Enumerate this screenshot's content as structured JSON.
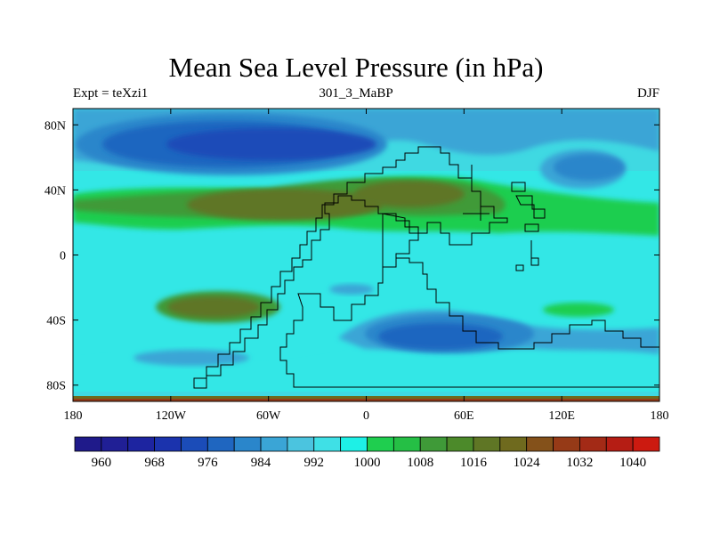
{
  "title": "Mean Sea Level Pressure (in hPa)",
  "subtitle_left": "Expt = teXzi1",
  "subtitle_center": "301_3_MaBP",
  "subtitle_right": "DJF",
  "map": {
    "projection": "cylindrical equidistant",
    "lon_range": [
      -180,
      180
    ],
    "lat_range": [
      -90,
      90
    ],
    "x_ticks": [
      {
        "value": -180,
        "label": "180"
      },
      {
        "value": -120,
        "label": "120W"
      },
      {
        "value": -60,
        "label": "60W"
      },
      {
        "value": 0,
        "label": "0"
      },
      {
        "value": 60,
        "label": "60E"
      },
      {
        "value": 120,
        "label": "120E"
      },
      {
        "value": 180,
        "label": "180"
      }
    ],
    "y_ticks": [
      {
        "value": 80,
        "label": "80N"
      },
      {
        "value": 40,
        "label": "40N"
      },
      {
        "value": 0,
        "label": "0"
      },
      {
        "value": -40,
        "label": "40S"
      },
      {
        "value": -80,
        "label": "80S"
      }
    ]
  },
  "colorbar": {
    "levels": [
      956,
      960,
      964,
      968,
      972,
      976,
      980,
      984,
      988,
      992,
      996,
      1000,
      1004,
      1008,
      1012,
      1016,
      1020,
      1024,
      1028,
      1032,
      1036,
      1040,
      1044
    ],
    "labels": [
      "960",
      "968",
      "976",
      "984",
      "992",
      "1000",
      "1008",
      "1016",
      "1024",
      "1032",
      "1040"
    ],
    "colors": [
      "#1f1a8a",
      "#201f95",
      "#1d24a0",
      "#1b33ad",
      "#1b4cb8",
      "#1f66c0",
      "#2a86cb",
      "#3aa5d6",
      "#4bc4df",
      "#3fe0e6",
      "#1ef0e6",
      "#1fce4f",
      "#25bf45",
      "#3f9a38",
      "#4c8a2a",
      "#5f7625",
      "#6f6a1e",
      "#84511a",
      "#963a17",
      "#a32a16",
      "#b51d14",
      "#cc1a10"
    ]
  }
}
